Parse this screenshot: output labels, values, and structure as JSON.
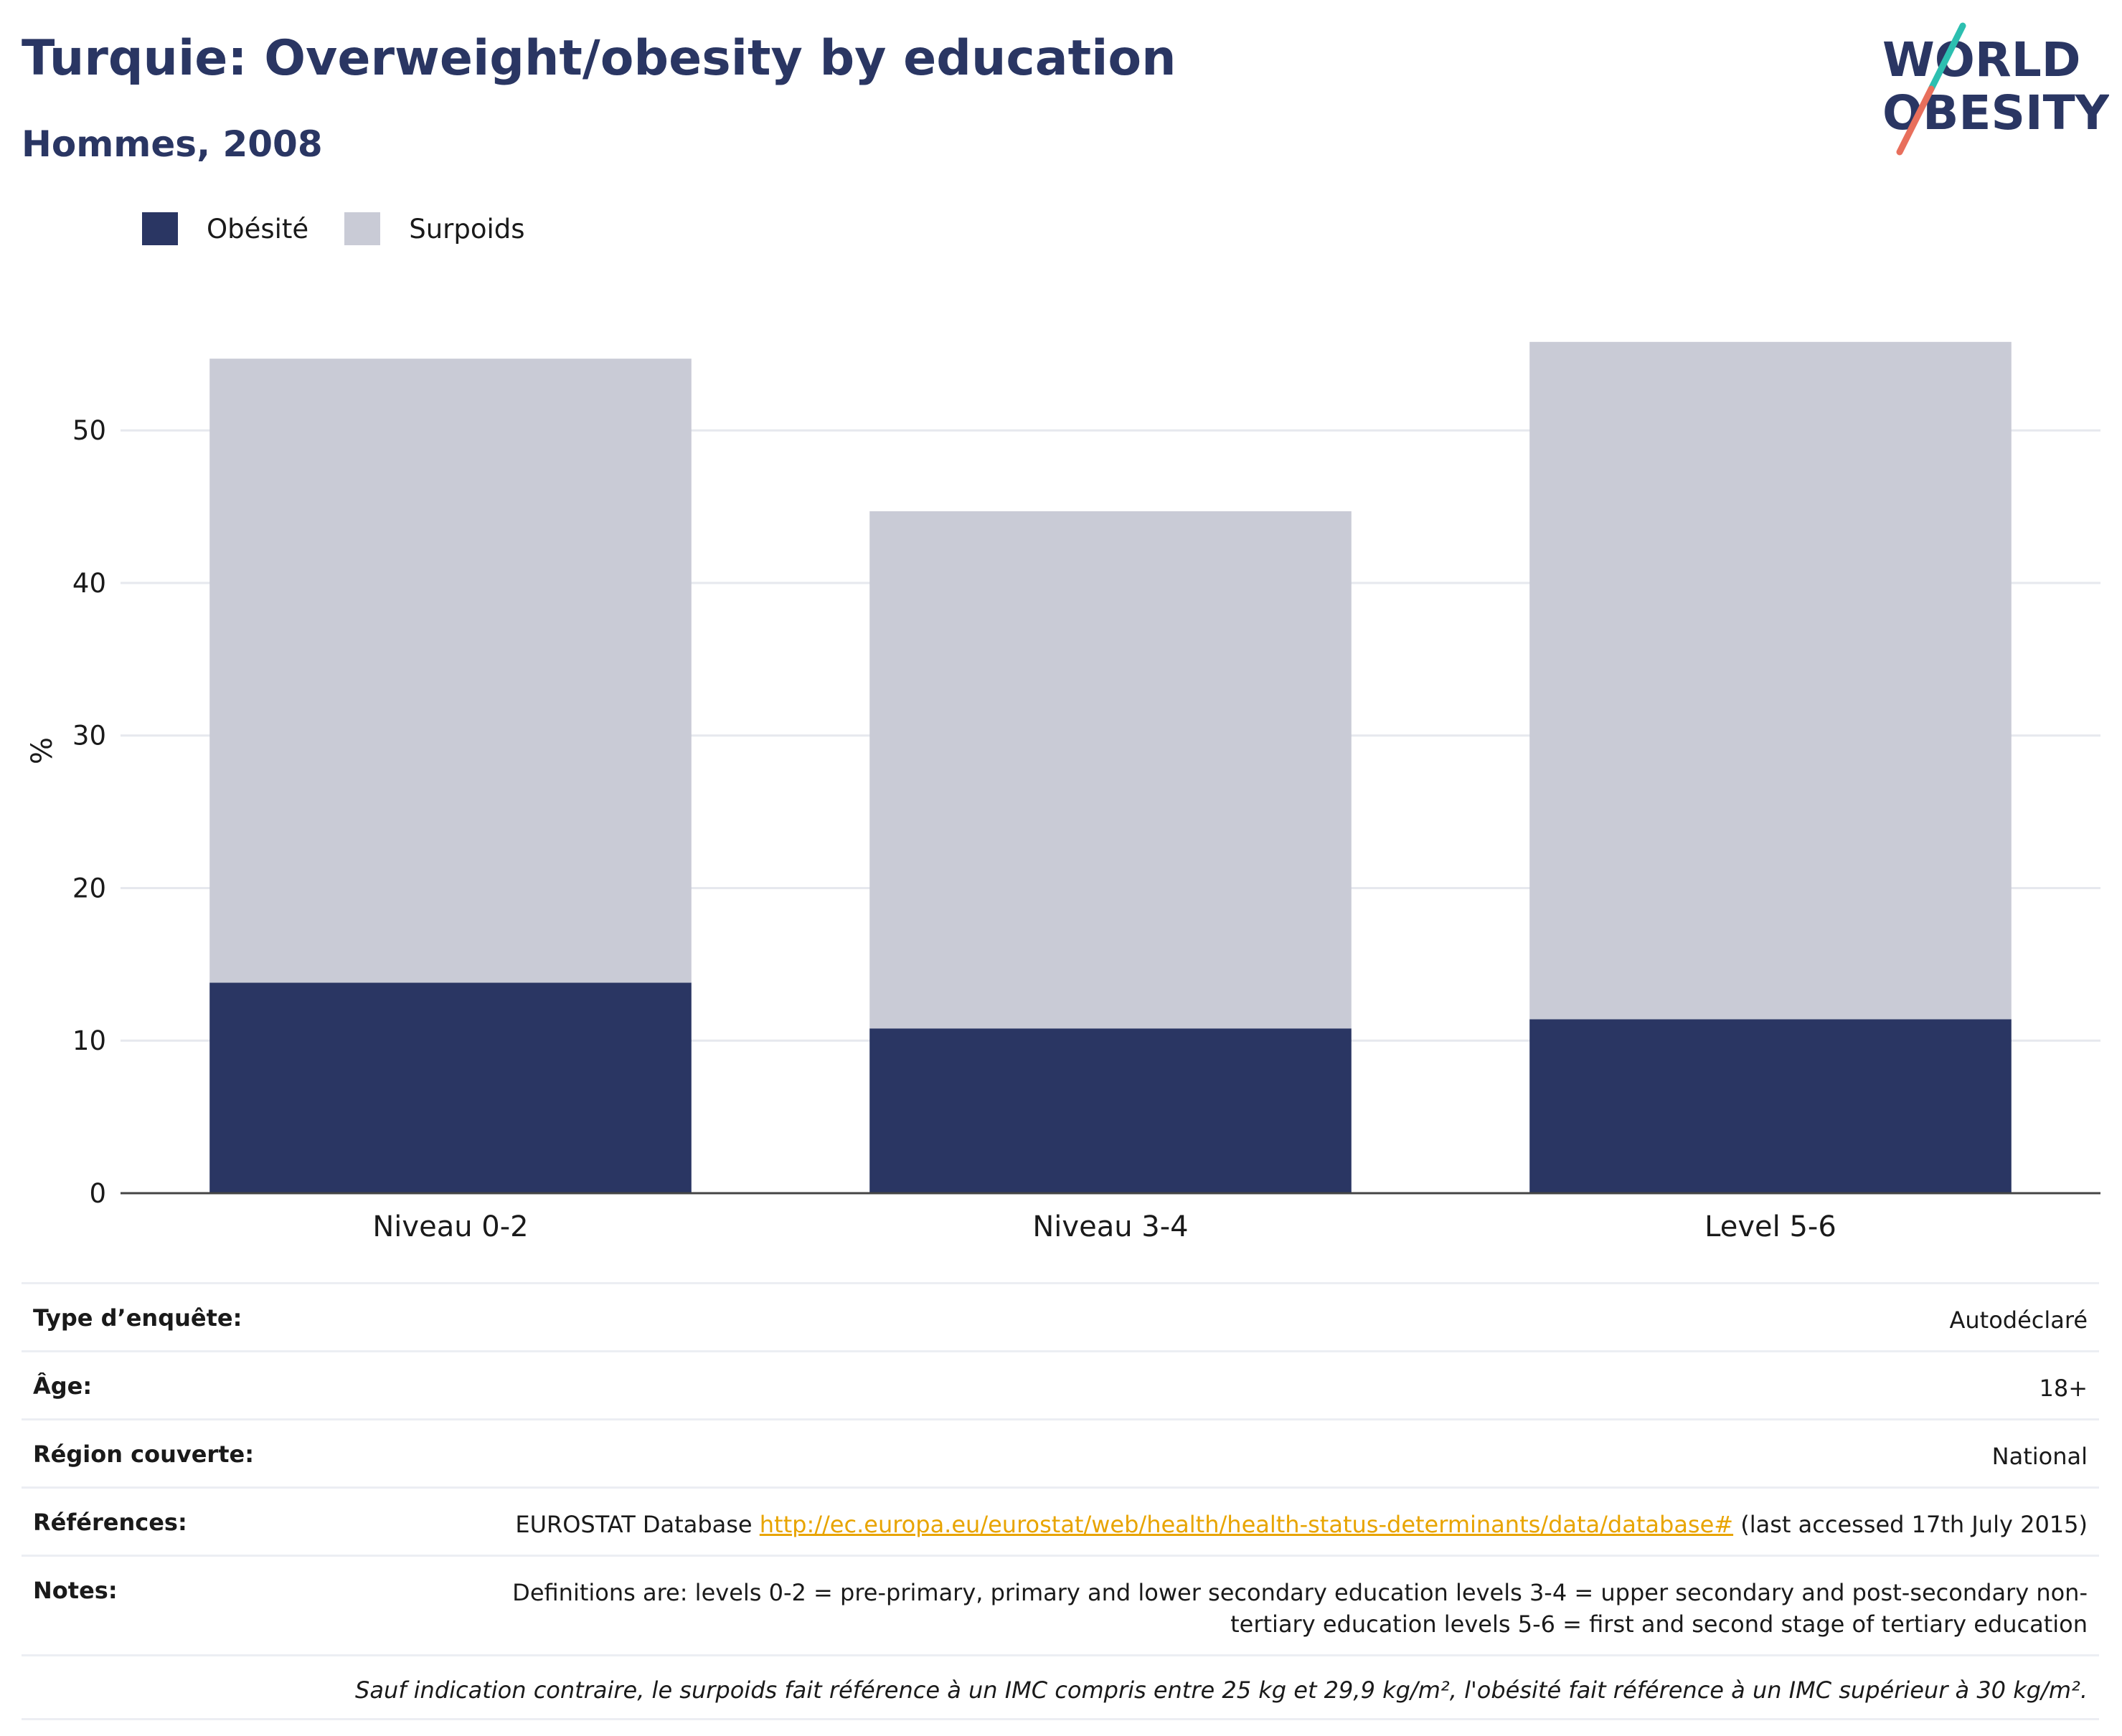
{
  "header": {
    "title": "Turquie: Overweight/obesity by education",
    "subtitle": "Hommes, 2008"
  },
  "logo": {
    "line1": "WORLD",
    "line2": "OBESITY"
  },
  "colors": {
    "obesity": "#2a3663",
    "overweight": "#c9cbd6",
    "title": "#2a3663",
    "link": "#e8a400",
    "logo_teal": "#2cbfb0",
    "logo_coral": "#e86f5c"
  },
  "chart_data": {
    "type": "bar",
    "stacked": true,
    "categories": [
      "Niveau 0-2",
      "Niveau 3-4",
      "Level 5-6"
    ],
    "series": [
      {
        "name": "Obésité",
        "values": [
          13.8,
          10.8,
          11.4
        ]
      },
      {
        "name": "Surpoids",
        "values": [
          40.9,
          33.9,
          44.4
        ]
      }
    ],
    "ylabel": "%",
    "ylim": [
      0,
      58
    ],
    "yticks": [
      0,
      10,
      20,
      30,
      40,
      50
    ],
    "grid": true,
    "legend": "top-left"
  },
  "meta": {
    "rows": [
      {
        "label": "Type d’enquête:",
        "value": "Autodéclaré"
      },
      {
        "label": "Âge:",
        "value": "18+"
      },
      {
        "label": "Région couverte:",
        "value": "National"
      }
    ],
    "references": {
      "label": "Références:",
      "prefix": "EUROSTAT Database ",
      "link": "http://ec.europa.eu/eurostat/web/health/health-status-determinants/data/database#",
      "suffix": " (last accessed 17th July 2015)"
    },
    "notes": {
      "label": "Notes:",
      "value": "Definitions are: levels 0-2 = pre-primary, primary and lower secondary education levels 3-4 = upper secondary and post-secondary non-tertiary education levels 5-6 = first and second stage of tertiary education"
    },
    "footnote": "Sauf indication contraire, le surpoids fait référence à un IMC compris entre 25 kg et 29,9 kg/m², l'obésité fait référence à un IMC supérieur à 30 kg/m²."
  }
}
